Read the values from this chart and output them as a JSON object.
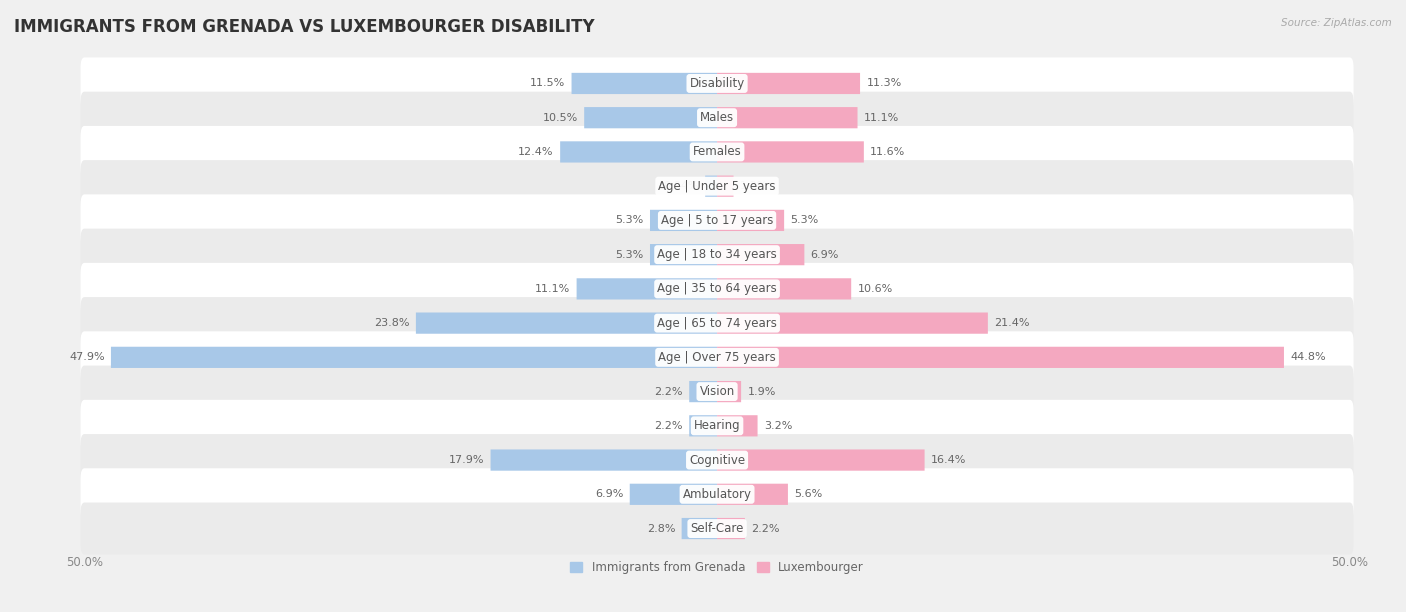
{
  "title": "IMMIGRANTS FROM GRENADA VS LUXEMBOURGER DISABILITY",
  "source": "Source: ZipAtlas.com",
  "categories": [
    "Disability",
    "Males",
    "Females",
    "Age | Under 5 years",
    "Age | 5 to 17 years",
    "Age | 18 to 34 years",
    "Age | 35 to 64 years",
    "Age | 65 to 74 years",
    "Age | Over 75 years",
    "Vision",
    "Hearing",
    "Cognitive",
    "Ambulatory",
    "Self-Care"
  ],
  "left_values": [
    11.5,
    10.5,
    12.4,
    0.94,
    5.3,
    5.3,
    11.1,
    23.8,
    47.9,
    2.2,
    2.2,
    17.9,
    6.9,
    2.8
  ],
  "right_values": [
    11.3,
    11.1,
    11.6,
    1.3,
    5.3,
    6.9,
    10.6,
    21.4,
    44.8,
    1.9,
    3.2,
    16.4,
    5.6,
    2.2
  ],
  "left_color": "#a8c8e8",
  "right_color": "#f4a8c0",
  "left_label": "Immigrants from Grenada",
  "right_label": "Luxembourger",
  "max_val": 50.0,
  "background_color": "#f0f0f0",
  "row_color_even": "#ffffff",
  "row_color_odd": "#ebebeb",
  "title_fontsize": 12,
  "label_fontsize": 8.5,
  "value_fontsize": 8,
  "axis_label_fontsize": 8.5
}
